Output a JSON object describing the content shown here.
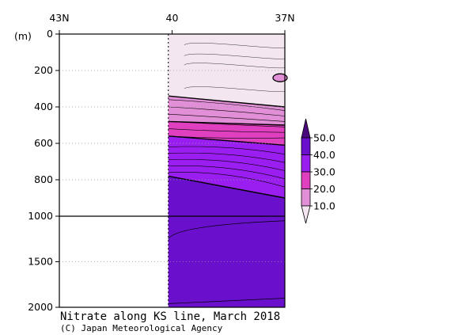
{
  "chart_data": {
    "type": "heatmap",
    "title": "Nitrate along KS line, March 2018",
    "credit": "(C) Japan Meteorological Agency",
    "ylabel": "(m)",
    "xlabel": "",
    "x_ticks": [
      {
        "value": 43,
        "label": "43N"
      },
      {
        "value": 40,
        "label": "40"
      },
      {
        "value": 37,
        "label": "37N"
      }
    ],
    "xlim": [
      43,
      37
    ],
    "y_ticks_upper": [
      0,
      200,
      400,
      600,
      800,
      1000
    ],
    "y_ticks_lower": [
      1000,
      1500,
      2000
    ],
    "ylim": [
      0,
      2000
    ],
    "y_break": 1000,
    "data_xlim": [
      40.1,
      37.0
    ],
    "colorbar": {
      "levels": [
        10.0,
        20.0,
        30.0,
        40.0,
        50.0
      ],
      "labels": [
        "10.0",
        "20.0",
        "30.0",
        "40.0",
        "50.0"
      ],
      "colors": [
        "#f3e6f1",
        "#e18fd6",
        "#e040c0",
        "#9b1ef0",
        "#6a0fcc",
        "#4a0a7e"
      ]
    },
    "bands": [
      {
        "class": 0,
        "top": [
          0,
          0
        ],
        "bottom": [
          340,
          400
        ]
      },
      {
        "class": 1,
        "top": [
          340,
          400
        ],
        "bottom": [
          480,
          500
        ]
      },
      {
        "class": 2,
        "top": [
          480,
          500
        ],
        "bottom": [
          560,
          610
        ]
      },
      {
        "class": 3,
        "top": [
          560,
          610
        ],
        "bottom": [
          780,
          900
        ]
      },
      {
        "class": 4,
        "top": [
          780,
          900
        ],
        "bottom": [
          2000,
          2000
        ]
      }
    ],
    "pocket": {
      "class": 1,
      "depth": 240
    }
  }
}
